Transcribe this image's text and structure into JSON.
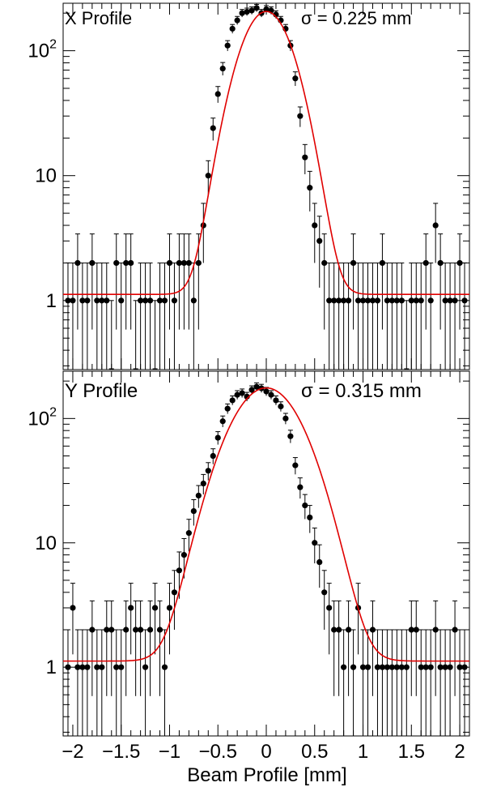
{
  "chart_data": [
    {
      "type": "scatter",
      "title": "X Profile",
      "annotation": "σ = 0.225 mm",
      "xlim": [
        -2.1,
        2.1
      ],
      "ylim": [
        0.28,
        240
      ],
      "yscale": "log",
      "yticks": [
        1,
        10,
        100
      ],
      "ytick_labels": [
        "1",
        "10",
        "10^2"
      ],
      "fit": {
        "sigma": 0.225,
        "baseline": 1.12,
        "amplitude": 205
      },
      "series": [
        {
          "kind": "data-points",
          "color": "#000000",
          "x": [
            -2.05,
            -2.0,
            -1.95,
            -1.9,
            -1.85,
            -1.8,
            -1.75,
            -1.7,
            -1.65,
            -1.6,
            -1.55,
            -1.5,
            -1.45,
            -1.4,
            -1.35,
            -1.3,
            -1.25,
            -1.2,
            -1.15,
            -1.1,
            -1.05,
            -1.0,
            -0.95,
            -0.9,
            -0.85,
            -0.8,
            -0.75,
            -0.7,
            -0.65,
            -0.6,
            -0.55,
            -0.5,
            -0.45,
            -0.4,
            -0.35,
            -0.3,
            -0.25,
            -0.2,
            -0.15,
            -0.1,
            -0.05,
            0.0,
            0.05,
            0.1,
            0.15,
            0.2,
            0.25,
            0.3,
            0.35,
            0.4,
            0.45,
            0.5,
            0.55,
            0.6,
            0.65,
            0.7,
            0.75,
            0.8,
            0.85,
            0.9,
            0.95,
            1.0,
            1.05,
            1.1,
            1.15,
            1.2,
            1.25,
            1.3,
            1.35,
            1.4,
            1.45,
            1.5,
            1.55,
            1.6,
            1.65,
            1.7,
            1.75,
            1.8,
            1.85,
            1.9,
            1.95,
            2.0,
            2.05
          ],
          "y": [
            1,
            1,
            2,
            1,
            1,
            2,
            1,
            1,
            1,
            0,
            2,
            1,
            2,
            2,
            0,
            1,
            1,
            1,
            0,
            1,
            1,
            2,
            1,
            2,
            2,
            2,
            1,
            2,
            4,
            10,
            24,
            45,
            72,
            110,
            150,
            175,
            200,
            205,
            210,
            220,
            200,
            215,
            210,
            195,
            175,
            150,
            110,
            60,
            30,
            14,
            8,
            4,
            3,
            2,
            1,
            1,
            1,
            1,
            1,
            2,
            1,
            1,
            1,
            1,
            1,
            2,
            1,
            1,
            1,
            1,
            0,
            1,
            1,
            1,
            2,
            1,
            4,
            2,
            1,
            1,
            1,
            2,
            1
          ]
        }
      ]
    },
    {
      "type": "scatter",
      "title": "Y Profile",
      "annotation": "σ = 0.315 mm",
      "xlabel": "Beam Profile [mm]",
      "xlim": [
        -2.1,
        2.1
      ],
      "ylim": [
        0.28,
        240
      ],
      "yscale": "log",
      "xticks": [
        -2,
        -1.5,
        -1,
        -0.5,
        0,
        0.5,
        1,
        1.5,
        2
      ],
      "xtick_labels": [
        "−2",
        "−1.5",
        "−1",
        "−0.5",
        "0",
        "0.5",
        "1",
        "1.5",
        "2"
      ],
      "yticks": [
        1,
        10,
        100
      ],
      "ytick_labels": [
        "1",
        "10",
        "10^2"
      ],
      "fit": {
        "sigma": 0.315,
        "baseline": 1.12,
        "amplitude": 175
      },
      "series": [
        {
          "kind": "data-points",
          "color": "#000000",
          "x": [
            -2.05,
            -2.0,
            -1.95,
            -1.9,
            -1.85,
            -1.8,
            -1.75,
            -1.7,
            -1.65,
            -1.6,
            -1.55,
            -1.5,
            -1.45,
            -1.4,
            -1.35,
            -1.3,
            -1.25,
            -1.2,
            -1.15,
            -1.1,
            -1.05,
            -1.0,
            -0.95,
            -0.9,
            -0.85,
            -0.8,
            -0.75,
            -0.7,
            -0.65,
            -0.6,
            -0.55,
            -0.5,
            -0.45,
            -0.4,
            -0.35,
            -0.3,
            -0.25,
            -0.2,
            -0.15,
            -0.1,
            -0.05,
            0.0,
            0.05,
            0.1,
            0.15,
            0.2,
            0.25,
            0.3,
            0.35,
            0.4,
            0.45,
            0.5,
            0.55,
            0.6,
            0.65,
            0.7,
            0.75,
            0.8,
            0.85,
            0.9,
            0.95,
            1.0,
            1.05,
            1.1,
            1.15,
            1.2,
            1.25,
            1.3,
            1.35,
            1.4,
            1.45,
            1.5,
            1.55,
            1.6,
            1.65,
            1.7,
            1.75,
            1.8,
            1.85,
            1.9,
            1.95,
            2.0,
            2.05
          ],
          "y": [
            1,
            3,
            1,
            1,
            1,
            2,
            1,
            1,
            2,
            2,
            1,
            1,
            2,
            3,
            2,
            2,
            1,
            2,
            3,
            2,
            1,
            3,
            4,
            6,
            8,
            12,
            18,
            24,
            30,
            38,
            50,
            70,
            95,
            120,
            140,
            155,
            160,
            150,
            170,
            180,
            175,
            165,
            155,
            140,
            125,
            100,
            72,
            42,
            28,
            20,
            16,
            10,
            7,
            4,
            3,
            2,
            2,
            1,
            2,
            1,
            3,
            1,
            1,
            2,
            1,
            1,
            1,
            1,
            1,
            1,
            1,
            2,
            2,
            1,
            1,
            1,
            2,
            1,
            1,
            1,
            2,
            1,
            1
          ]
        }
      ]
    }
  ]
}
